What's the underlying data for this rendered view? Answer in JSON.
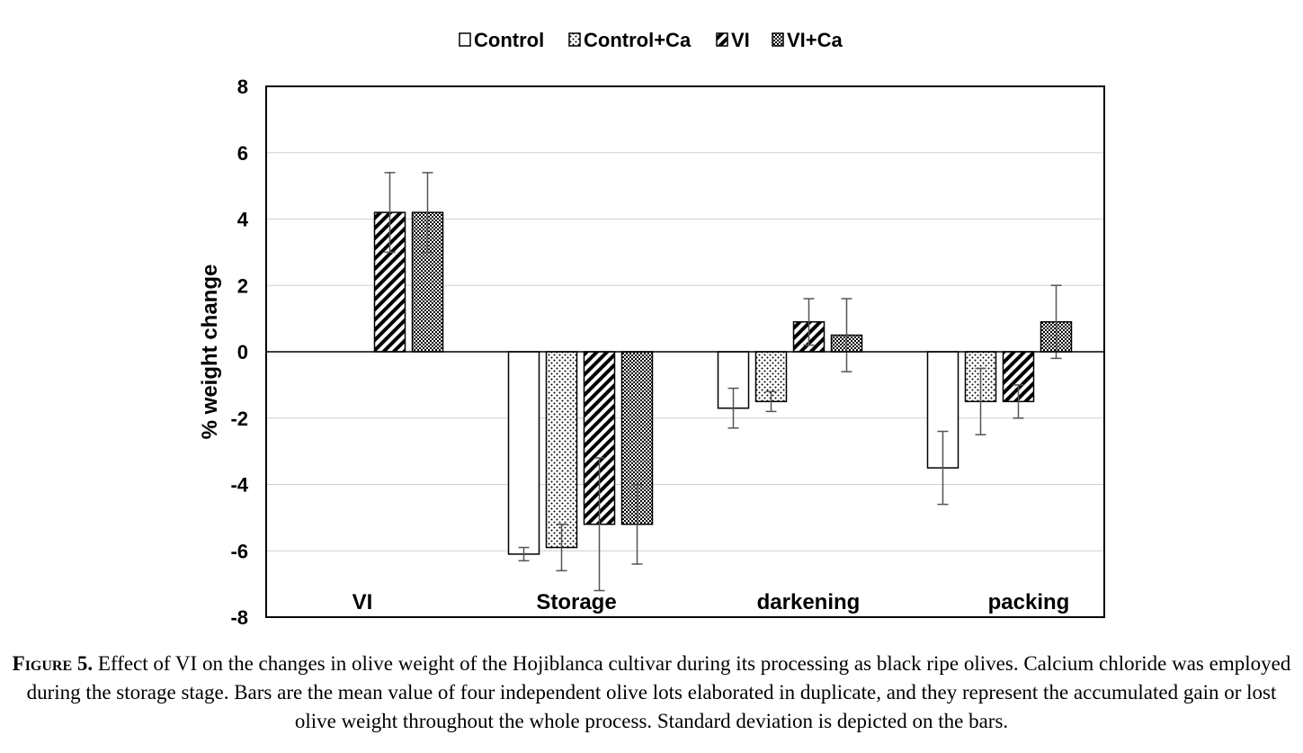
{
  "chart_data": {
    "type": "bar",
    "title": "",
    "xlabel": "",
    "ylabel": "% weight change",
    "ylim": [
      -8,
      8
    ],
    "yticks": [
      8,
      6,
      4,
      2,
      0,
      -2,
      -4,
      -6,
      -8
    ],
    "categories": [
      "VI",
      "Storage",
      "darkening",
      "packing"
    ],
    "legend_position": "top",
    "grid": true,
    "series": [
      {
        "name": "Control",
        "pattern": "blank",
        "values": [
          null,
          -6.1,
          -1.7,
          -3.5
        ],
        "errors": [
          null,
          0.2,
          0.6,
          1.1
        ]
      },
      {
        "name": "Control+Ca",
        "pattern": "dots",
        "values": [
          null,
          -5.9,
          -1.5,
          -1.5
        ],
        "errors": [
          null,
          0.7,
          0.3,
          1.0
        ]
      },
      {
        "name": "VI",
        "pattern": "diagonal",
        "values": [
          4.2,
          -5.2,
          0.9,
          -1.5
        ],
        "errors": [
          1.2,
          2.0,
          0.7,
          0.5
        ]
      },
      {
        "name": "VI+Ca",
        "pattern": "checker",
        "values": [
          4.2,
          -5.2,
          0.5,
          0.9
        ],
        "errors": [
          1.2,
          1.2,
          1.1,
          1.1
        ]
      }
    ]
  },
  "caption": {
    "label": "Figure 5.",
    "text": " Effect of VI on the changes in olive weight of the Hojiblanca cultivar during its processing as black ripe olives. Calcium chloride was employed during the storage stage. Bars are the mean value of four independent olive lots elaborated in duplicate, and they represent the accumulated gain or lost olive weight throughout the whole process. Standard deviation is depicted on the bars."
  }
}
